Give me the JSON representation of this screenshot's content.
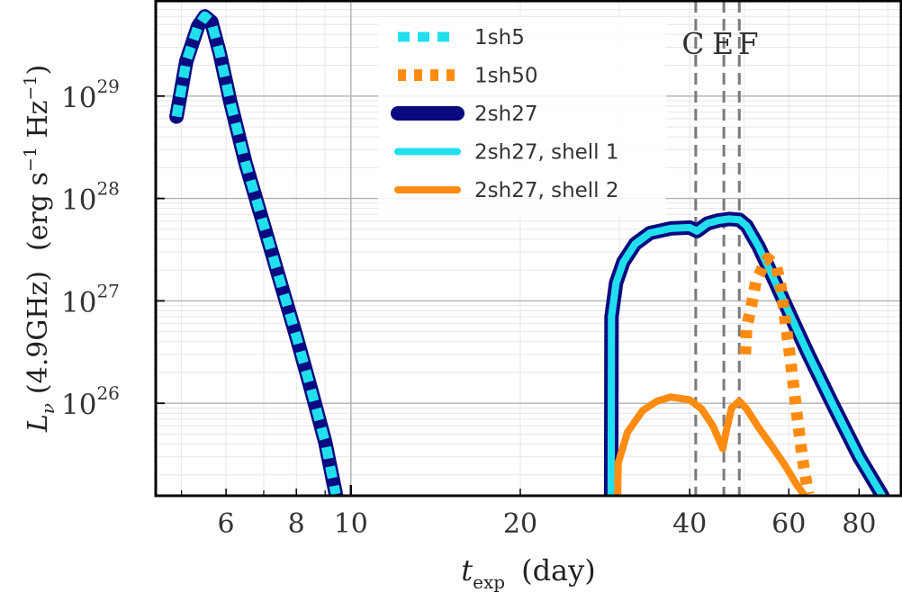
{
  "chart_data": {
    "type": "line",
    "xscale": "log",
    "yscale": "log",
    "xlim": [
      4.5,
      95
    ],
    "ylim": [
      1.25e+25,
      8.5e+29
    ],
    "xlabel": {
      "main": "t",
      "sub": "exp",
      "unit": "(day)"
    },
    "ylabel": {
      "main": "L",
      "sub": "ν",
      "arg": "(4.9GHz)",
      "unit_pre": "(erg s",
      "unit_exp1": "−1",
      "unit_mid": " Hz",
      "unit_exp2": "−1",
      "unit_post": ")"
    },
    "x_ticks": [
      {
        "value": 6,
        "label": "6"
      },
      {
        "value": 8,
        "label": "8"
      },
      {
        "value": 10,
        "label": "10"
      },
      {
        "value": 20,
        "label": "20"
      },
      {
        "value": 40,
        "label": "40"
      },
      {
        "value": 60,
        "label": "60"
      },
      {
        "value": 80,
        "label": "80"
      }
    ],
    "y_ticks": [
      {
        "value": 1e+26,
        "base": "10",
        "exp": "26"
      },
      {
        "value": 1e+27,
        "base": "10",
        "exp": "27"
      },
      {
        "value": 1e+28,
        "base": "10",
        "exp": "28"
      },
      {
        "value": 1e+29,
        "base": "10",
        "exp": "29"
      }
    ],
    "vertical_lines": [
      {
        "x": 41,
        "label": "C"
      },
      {
        "x": 46,
        "label": "E"
      },
      {
        "x": 49,
        "label": "F"
      }
    ],
    "series": [
      {
        "name": "2sh27",
        "color": "#0a0a80",
        "style": "solid-thick",
        "points": [
          [
            4.9,
            6.3e+28
          ],
          [
            5.1,
            2.2e+29
          ],
          [
            5.35,
            4.8e+29
          ],
          [
            5.5,
            6e+29
          ],
          [
            5.65,
            5.3e+29
          ],
          [
            5.85,
            2.6e+29
          ],
          [
            6.1,
            9e+28
          ],
          [
            6.5,
            2.2e+28
          ],
          [
            7.0,
            5.5e+27
          ],
          [
            7.5,
            1.5e+27
          ],
          [
            8.0,
            4.5e+26
          ],
          [
            8.5,
            1.35e+26
          ],
          [
            9.0,
            4.2e+25
          ],
          [
            9.4,
            1.3e+25
          ]
        ]
      },
      {
        "name": "1sh5",
        "color": "#22dfee",
        "style": "dashed-thick",
        "points": [
          [
            4.9,
            6.3e+28
          ],
          [
            5.1,
            2.2e+29
          ],
          [
            5.35,
            4.8e+29
          ],
          [
            5.5,
            6e+29
          ],
          [
            5.65,
            5.3e+29
          ],
          [
            5.85,
            2.6e+29
          ],
          [
            6.1,
            9e+28
          ],
          [
            6.5,
            2.2e+28
          ],
          [
            7.0,
            5.5e+27
          ],
          [
            7.5,
            1.5e+27
          ],
          [
            8.0,
            4.5e+26
          ],
          [
            8.5,
            1.35e+26
          ],
          [
            9.0,
            4.2e+25
          ],
          [
            9.4,
            1.3e+25
          ]
        ]
      },
      {
        "name": "2sh27",
        "color": "#0a0a80",
        "style": "solid-thick",
        "points": [
          [
            29.0,
            1.3e+25
          ],
          [
            29.05,
            7e+26
          ],
          [
            29.6,
            1.5e+27
          ],
          [
            30.5,
            2.4e+27
          ],
          [
            32.0,
            3.6e+27
          ],
          [
            34.0,
            4.6e+27
          ],
          [
            37.0,
            5.1e+27
          ],
          [
            40.0,
            5.2e+27
          ],
          [
            41.2,
            4.8e+27
          ],
          [
            43.0,
            5.7e+27
          ],
          [
            45.0,
            6.1e+27
          ],
          [
            47.0,
            6.3e+27
          ],
          [
            49.0,
            6.2e+27
          ],
          [
            50.5,
            5.4e+27
          ],
          [
            53.0,
            3.4e+27
          ],
          [
            56.0,
            1.8e+27
          ],
          [
            60.0,
            7.8e+26
          ],
          [
            65.0,
            3e+26
          ],
          [
            72.0,
            9.5e+25
          ],
          [
            80.0,
            3e+25
          ],
          [
            88.0,
            1.25e+25
          ]
        ]
      },
      {
        "name": "2sh27, shell 1",
        "color": "#22dfee",
        "style": "solid-thin",
        "points": [
          [
            29.0,
            1.3e+25
          ],
          [
            29.05,
            7e+26
          ],
          [
            29.6,
            1.5e+27
          ],
          [
            30.5,
            2.4e+27
          ],
          [
            32.0,
            3.6e+27
          ],
          [
            34.0,
            4.6e+27
          ],
          [
            37.0,
            5.1e+27
          ],
          [
            40.0,
            5.2e+27
          ],
          [
            41.2,
            4.8e+27
          ],
          [
            43.0,
            5.7e+27
          ],
          [
            45.0,
            6.1e+27
          ],
          [
            47.0,
            6.3e+27
          ],
          [
            49.0,
            6.2e+27
          ],
          [
            50.5,
            5.4e+27
          ],
          [
            53.0,
            3.4e+27
          ],
          [
            56.0,
            1.8e+27
          ],
          [
            60.0,
            7.8e+26
          ],
          [
            65.0,
            3e+26
          ],
          [
            72.0,
            9.5e+25
          ],
          [
            80.0,
            3e+25
          ],
          [
            88.0,
            1.25e+25
          ]
        ]
      },
      {
        "name": "2sh27, shell 2",
        "color": "#ff8c10",
        "style": "solid-thin",
        "points": [
          [
            29.8,
            1.3e+25
          ],
          [
            29.85,
            2.6e+25
          ],
          [
            31.0,
            5.2e+25
          ],
          [
            33.0,
            8.5e+25
          ],
          [
            35.0,
            1.05e+26
          ],
          [
            37.0,
            1.15e+26
          ],
          [
            40.0,
            1.08e+26
          ],
          [
            42.0,
            8.8e+25
          ],
          [
            44.0,
            6e+25
          ],
          [
            45.8,
            3.6e+25
          ],
          [
            46.5,
            5.5e+25
          ],
          [
            47.5,
            9e+25
          ],
          [
            49.0,
            1.05e+26
          ],
          [
            50.5,
            8.8e+25
          ],
          [
            53.0,
            5.8e+25
          ],
          [
            56.0,
            3.8e+25
          ],
          [
            59.0,
            2.5e+25
          ],
          [
            62.0,
            1.6e+25
          ],
          [
            64.0,
            1.25e+25
          ]
        ]
      },
      {
        "name": "1sh50",
        "color": "#ff8c10",
        "style": "dotted-thick",
        "points": [
          [
            50.2,
            3e+26
          ],
          [
            50.5,
            5.5e+26
          ],
          [
            51.5,
            9e+26
          ],
          [
            52.5,
            1.6e+27
          ],
          [
            55.0,
            2.6e+27
          ],
          [
            57.0,
            2.2e+27
          ],
          [
            58.0,
            1.45e+27
          ],
          [
            59.0,
            7e+26
          ],
          [
            60.5,
            2.5e+26
          ],
          [
            62.0,
            8e+25
          ],
          [
            63.5,
            2.8e+25
          ],
          [
            65.0,
            1.3e+25
          ]
        ]
      }
    ],
    "legend": {
      "position": "top-center",
      "entries": [
        {
          "label": "1sh5",
          "color": "#22dfee",
          "style": "dashed-thick"
        },
        {
          "label": "1sh50",
          "color": "#ff8c10",
          "style": "dotted-thick"
        },
        {
          "label": "2sh27",
          "color": "#0a0a80",
          "style": "solid-thick"
        },
        {
          "label": "2sh27, shell 1",
          "color": "#22dfee",
          "style": "solid-thin"
        },
        {
          "label": "2sh27, shell 2",
          "color": "#ff8c10",
          "style": "solid-thin"
        }
      ]
    }
  }
}
